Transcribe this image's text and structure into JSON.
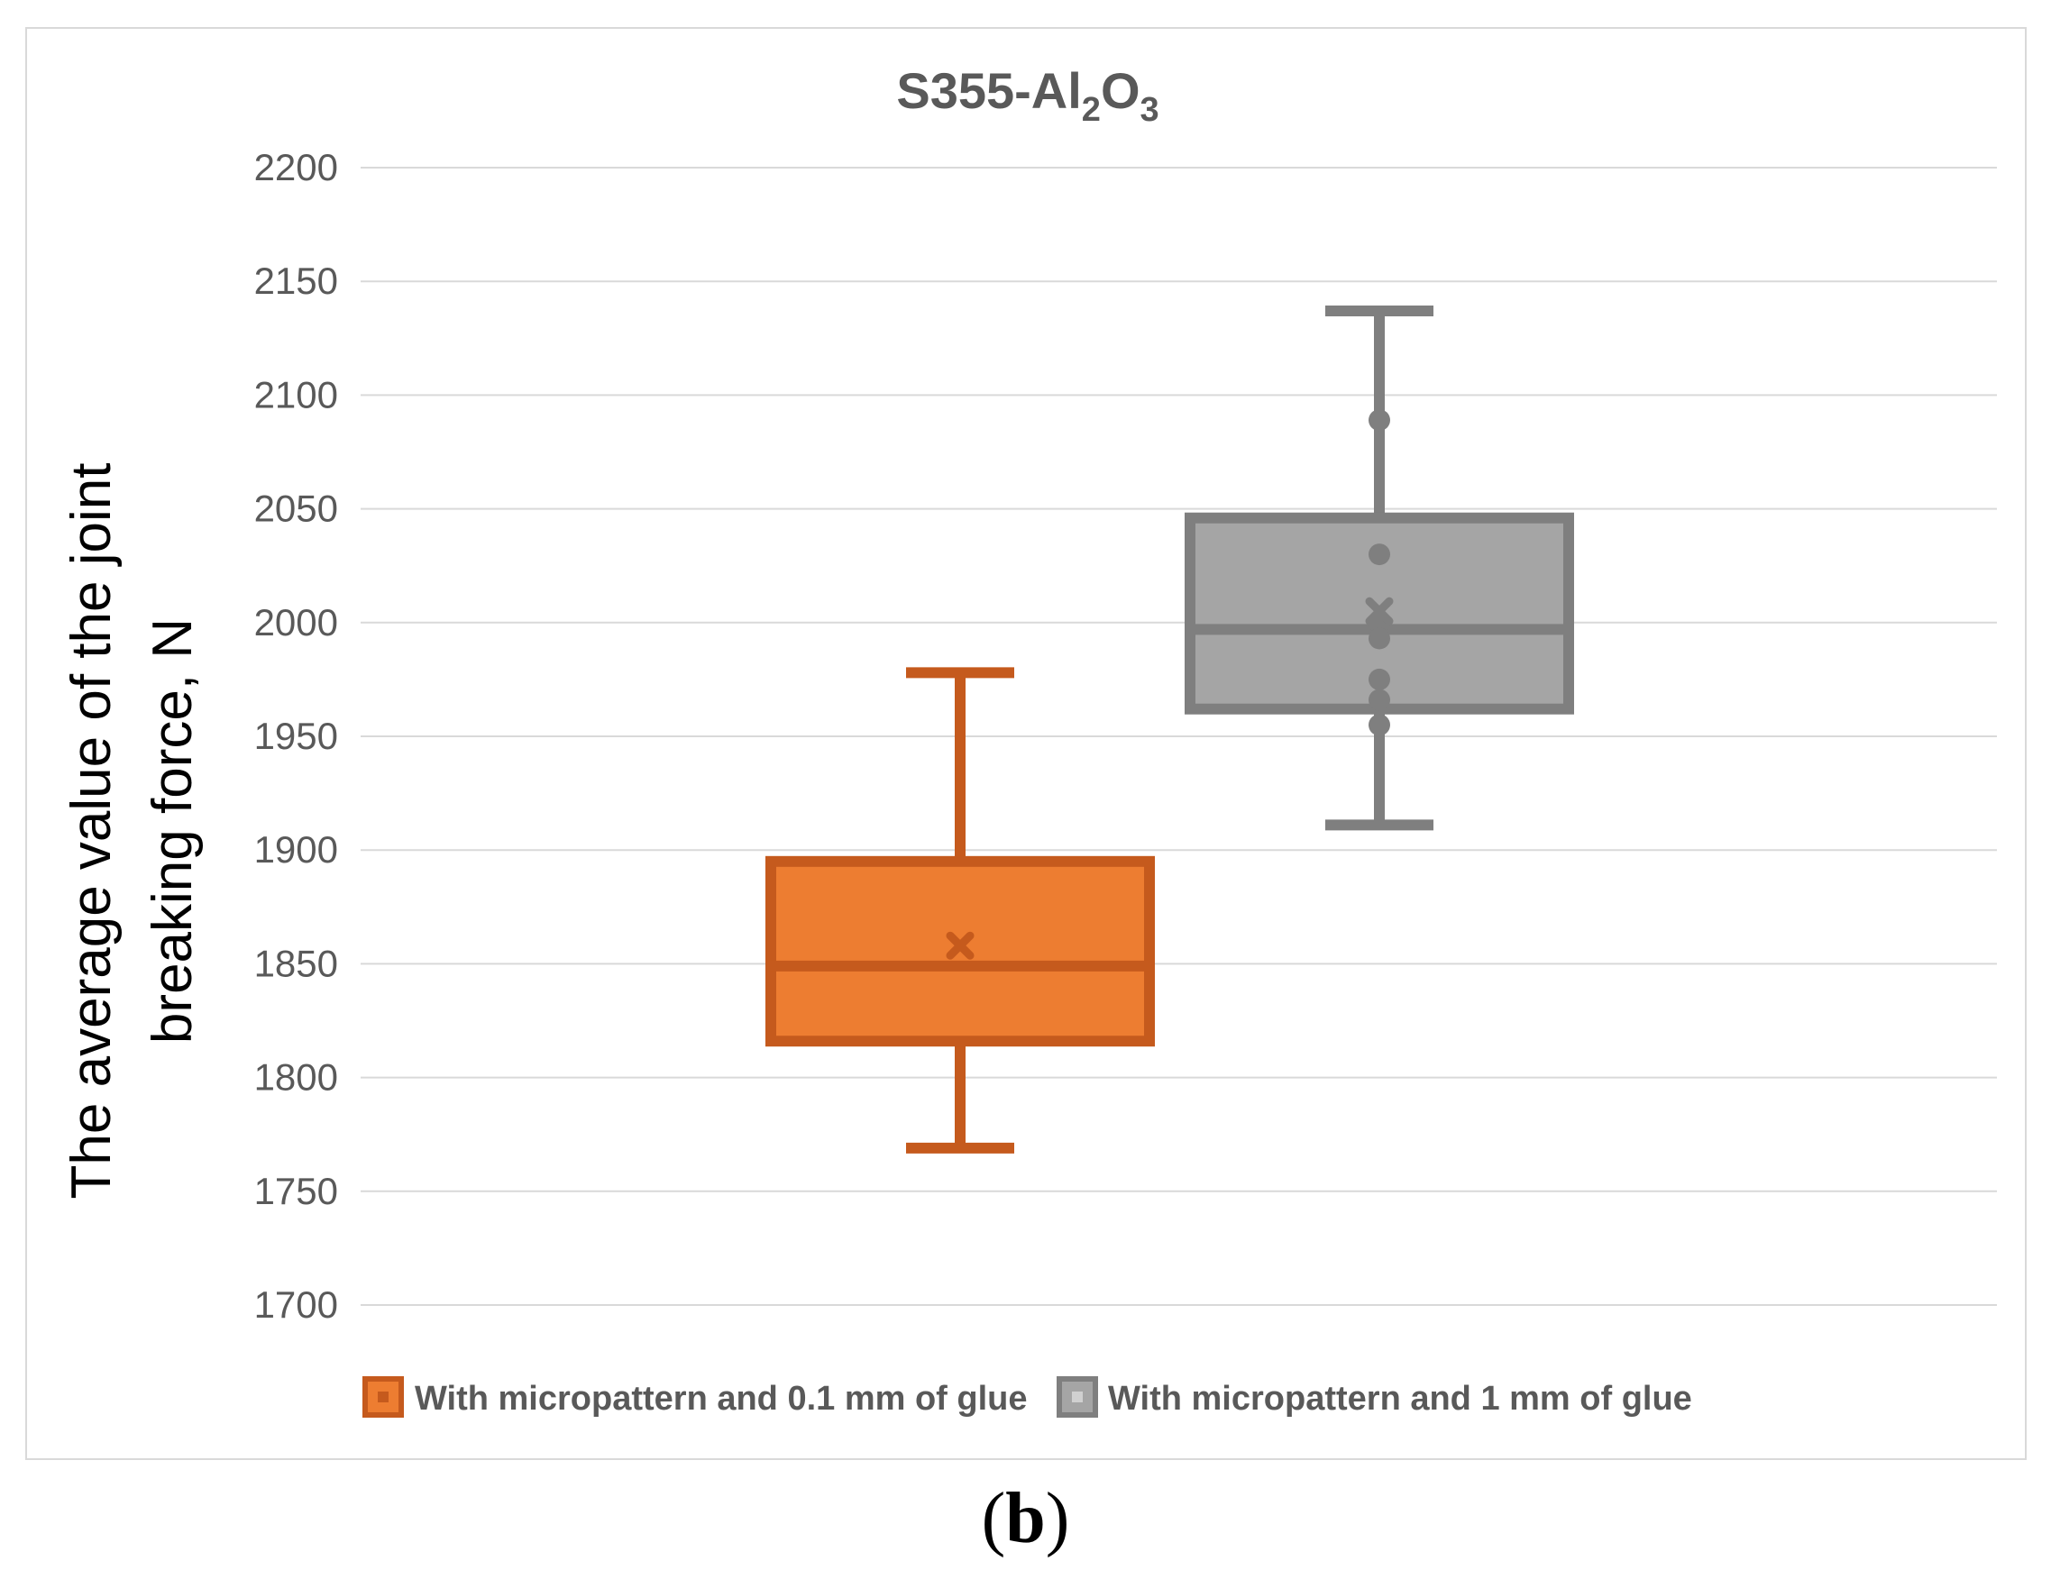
{
  "panel_label": {
    "open": "(",
    "letter": "b",
    "close": ")"
  },
  "chart_data": {
    "type": "box",
    "title": "S355-Al2O3",
    "title_parts": {
      "main": "S355-Al",
      "sub1": "2",
      "mid": "O",
      "sub2": "3"
    },
    "ylabel_line1": "The average value of the joint",
    "ylabel_line2": "breaking force, N",
    "xlabel": "",
    "ylim": [
      1700,
      2200
    ],
    "yticks": [
      1700,
      1750,
      1800,
      1850,
      1900,
      1950,
      2000,
      2050,
      2100,
      2150,
      2200
    ],
    "grid": true,
    "legend_position": "bottom",
    "series": [
      {
        "name": "With micropattern and 0.1 mm of glue",
        "color": "#ED7D31",
        "edge_color": "#C55A1D",
        "min": 1769,
        "q1": 1816,
        "median": 1849,
        "q3": 1895,
        "max": 1978,
        "mean": 1858,
        "points": []
      },
      {
        "name": "With micropattern and 1 mm of glue",
        "color": "#A5A5A5",
        "edge_color": "#7F7F7F",
        "min": 1911,
        "q1": 1962,
        "median": 1997,
        "q3": 2046,
        "max": 2137,
        "mean": 2005,
        "points": [
          2089,
          2030,
          2000,
          1993,
          1975,
          1966,
          1955
        ]
      }
    ]
  }
}
